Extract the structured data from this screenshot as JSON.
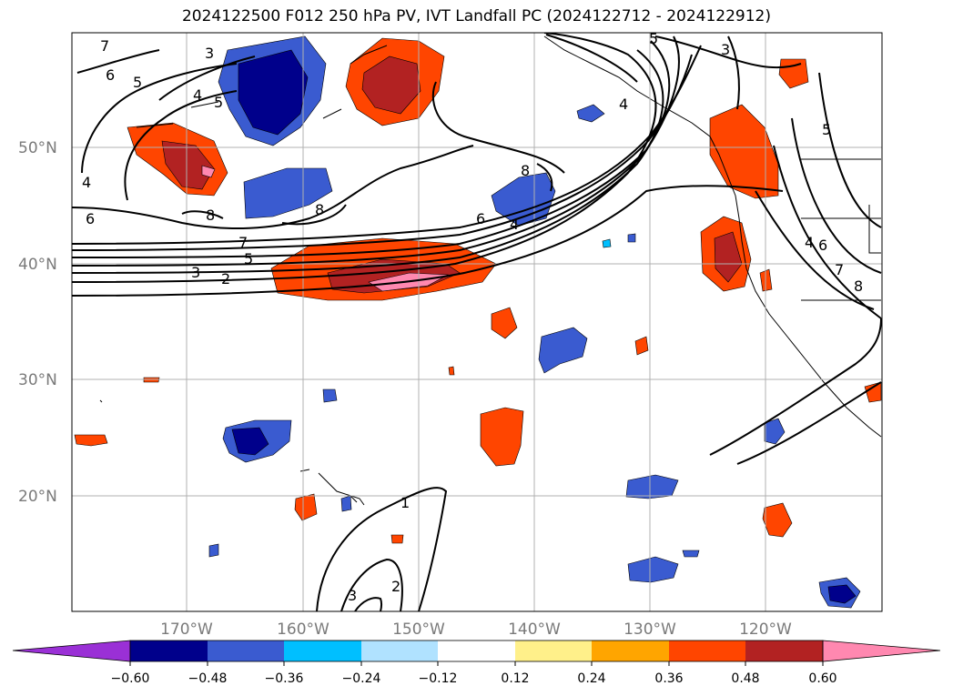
{
  "title": "2024122500 F012 250 hPa PV, IVT Landfall PC (2024122712 - 2024122912)",
  "lat_labels": [
    "50°N",
    "40°N",
    "30°N",
    "20°N"
  ],
  "lon_labels": [
    "170°W",
    "160°W",
    "150°W",
    "140°W",
    "130°W",
    "120°W"
  ],
  "colorbar": {
    "ticks": [
      "−0.60",
      "−0.48",
      "−0.36",
      "−0.24",
      "−0.12",
      "0.12",
      "0.24",
      "0.36",
      "0.48",
      "0.60"
    ],
    "colors": [
      "#9a30d6",
      "#00008b",
      "#3a5bd0",
      "#00bfff",
      "#b0e2ff",
      "#ffffff",
      "#fff08a",
      "#ffa500",
      "#ff4500",
      "#b22222",
      "#ff88b0"
    ]
  },
  "contour_labels": [
    "7",
    "6",
    "5",
    "4",
    "4",
    "5",
    "3",
    "6",
    "8",
    "8",
    "7",
    "5",
    "3",
    "2",
    "6",
    "4",
    "8",
    "5",
    "3",
    "5",
    "6",
    "7",
    "8",
    "1",
    "2",
    "3",
    "4",
    "4"
  ]
}
